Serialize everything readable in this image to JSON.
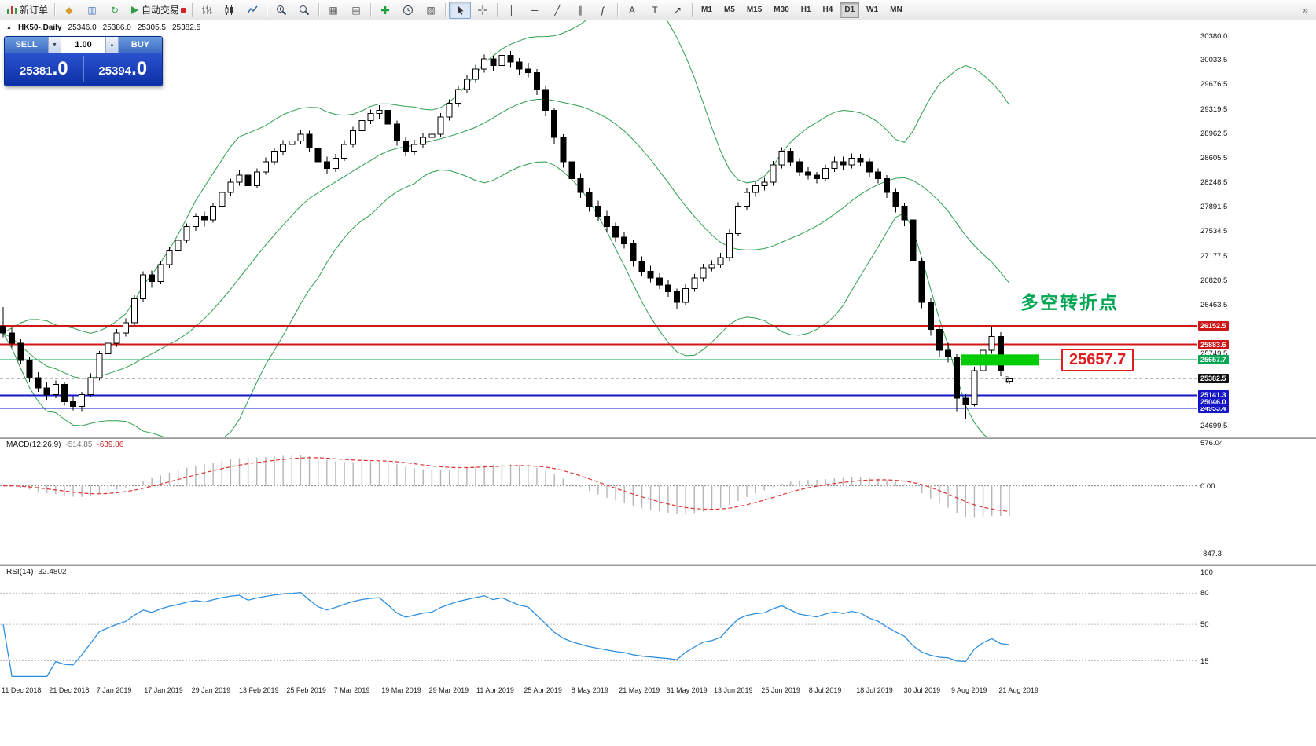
{
  "toolbar": {
    "items": [
      {
        "name": "new-order-button",
        "svg": "neworder",
        "label": "新订单"
      },
      {
        "type": "sep"
      },
      {
        "name": "new-chart-button",
        "glyph": "◆",
        "color": "#d99a2b"
      },
      {
        "name": "market-watch-button",
        "glyph": "▥",
        "color": "#4a78c0"
      },
      {
        "name": "navigator-button",
        "glyph": "↻",
        "color": "#2f9e44"
      },
      {
        "name": "autotrading-button",
        "svg": "play",
        "label": "自动交易",
        "badge": true
      },
      {
        "type": "sep"
      },
      {
        "name": "bar-chart-button",
        "svg": "bars"
      },
      {
        "name": "candlestick-chart-button",
        "svg": "candles"
      },
      {
        "name": "line-chart-button",
        "svg": "linechart"
      },
      {
        "type": "sep"
      },
      {
        "name": "zoom-in-button",
        "svg": "zoomin"
      },
      {
        "name": "zoom-out-button",
        "svg": "zoomout"
      },
      {
        "type": "sep"
      },
      {
        "name": "grid-button",
        "glyph": "▦",
        "color": "#555555"
      },
      {
        "name": "tile-windows-button",
        "glyph": "▤",
        "color": "#555555"
      },
      {
        "type": "sep"
      },
      {
        "name": "indicators-button",
        "svg": "indicator"
      },
      {
        "name": "periods-button",
        "svg": "clock"
      },
      {
        "name": "templates-button",
        "glyph": "▧",
        "color": "#555555"
      },
      {
        "type": "sep"
      },
      {
        "name": "cursor-button",
        "svg": "cursor",
        "pressed": true
      },
      {
        "name": "crosshair-button",
        "svg": "crosshair"
      },
      {
        "type": "sep"
      },
      {
        "name": "vertical-line-button",
        "glyph": "│",
        "color": "#333333"
      },
      {
        "name": "horizontal-line-button",
        "glyph": "─",
        "color": "#333333"
      },
      {
        "name": "trendline-button",
        "glyph": "╱",
        "color": "#333333"
      },
      {
        "name": "channel-button",
        "glyph": "∥",
        "color": "#333333"
      },
      {
        "name": "fibonacci-button",
        "glyph": "ƒ",
        "color": "#333333"
      },
      {
        "type": "sep"
      },
      {
        "name": "text-button",
        "glyph": "A",
        "color": "#333333"
      },
      {
        "name": "text-label-button",
        "glyph": "T",
        "color": "#333333"
      },
      {
        "name": "arrows-button",
        "glyph": "↗",
        "color": "#333333"
      },
      {
        "type": "sep"
      }
    ],
    "timeframes": [
      "M1",
      "M5",
      "M15",
      "M30",
      "H1",
      "H4",
      "D1",
      "W1",
      "MN"
    ],
    "active_timeframe": "D1",
    "overflow_glyph": "»"
  },
  "chart": {
    "header": {
      "marker": "▲",
      "symbol_period": "HK50-,Daily",
      "open": "25346.0",
      "high": "25386.0",
      "low": "25305.5",
      "close": "25382.5"
    },
    "one_click": {
      "sell_label": "SELL",
      "buy_label": "BUY",
      "volume": "1.00",
      "vol_down_glyph": "▼",
      "vol_up_glyph": "▲",
      "sell_price": "25381",
      "sell_pips": ".0",
      "buy_price": "25394",
      "buy_pips": ".0"
    },
    "annotations": {
      "turning_point": {
        "text": "多空转折点",
        "color": "#00a651"
      },
      "callout": {
        "text": "25657.7",
        "color": "#e02020"
      },
      "zone_rect": {
        "price": 25657.7,
        "x": 1222,
        "width": 100,
        "height": 14,
        "color": "#00cc00"
      },
      "marker_glyph": "⇩"
    }
  },
  "chart_data": {
    "type": "candlestick",
    "symbol": "HK50-",
    "period": "Daily",
    "ylim": [
      24539,
      30609
    ],
    "price_axis_labels": [
      "30380.0",
      "30033.5",
      "29676.5",
      "29319.5",
      "28962.5",
      "28605.5",
      "28248.5",
      "27891.5",
      "27534.5",
      "27177.5",
      "26820.5",
      "26463.5",
      "26106.5",
      "25749.5",
      "25392.5",
      "25035.5",
      "24699.5"
    ],
    "dates": [
      "11 Dec 2018",
      "21 Dec 2018",
      "7 Jan 2019",
      "17 Jan 2019",
      "29 Jan 2019",
      "13 Feb 2019",
      "25 Feb 2019",
      "7 Mar 2019",
      "19 Mar 2019",
      "29 Mar 2019",
      "11 Apr 2019",
      "25 Apr 2019",
      "8 May 2019",
      "21 May 2019",
      "31 May 2019",
      "13 Jun 2019",
      "25 Jun 2019",
      "8 Jul 2019",
      "18 Jul 2019",
      "30 Jul 2019",
      "9 Aug 2019",
      "21 Aug 2019"
    ],
    "hlines": [
      {
        "price": 26152.5,
        "label": "26152.5",
        "color": "#d01616"
      },
      {
        "price": 25883.6,
        "label": "25883.6",
        "color": "#d01616"
      },
      {
        "price": 25657.7,
        "label": "25657.7",
        "color": "#00a651"
      },
      {
        "price": 25141.3,
        "label": "25141.3",
        "color": "#1515c8"
      },
      {
        "price": 24953.4,
        "label": "24953.4",
        "color": "#1515c8"
      }
    ],
    "extra_tags": [
      {
        "price": 25046.0,
        "label": "25046.0",
        "color": "#1515c8"
      }
    ],
    "current_price": {
      "price": 25382.5,
      "label": "25382.5",
      "color": "#111111"
    },
    "bollinger": {
      "period": 20,
      "deviation": 2,
      "color": "#2e9e4f"
    },
    "macd": {
      "label": "MACD(12,26,9)",
      "main_value": "-514.85",
      "signal_value": "-639.86",
      "ylim": [
        -977,
        586
      ],
      "axis": [
        {
          "v": 576.04,
          "label": "576.04",
          "line": false
        },
        {
          "v": 0,
          "label": "0.00",
          "line": true
        },
        {
          "v": -847.3,
          "label": "-847.3",
          "line": false
        }
      ],
      "histogram_color": "#b5b5b5",
      "signal_color": "#e03030"
    },
    "rsi": {
      "label": "RSI(14)",
      "value": "32.4802",
      "ylim": [
        -5,
        106
      ],
      "levels": [
        {
          "v": 100,
          "label": "100",
          "line": false
        },
        {
          "v": 80,
          "label": "80",
          "line": true
        },
        {
          "v": 50,
          "label": "50",
          "line": true
        },
        {
          "v": 15,
          "label": "15",
          "line": true
        }
      ],
      "color": "#2f8fdf"
    },
    "candles": [
      [
        26150,
        26430,
        25990,
        26050
      ],
      [
        26050,
        26120,
        25840,
        25900
      ],
      [
        25900,
        25960,
        25590,
        25650
      ],
      [
        25650,
        25700,
        25340,
        25400
      ],
      [
        25400,
        25480,
        25190,
        25250
      ],
      [
        25250,
        25330,
        25080,
        25150
      ],
      [
        25150,
        25360,
        25100,
        25300
      ],
      [
        25300,
        25340,
        24990,
        25050
      ],
      [
        25050,
        25130,
        24920,
        24980
      ],
      [
        24980,
        25190,
        24900,
        25150
      ],
      [
        25150,
        25460,
        25110,
        25400
      ],
      [
        25400,
        25790,
        25360,
        25750
      ],
      [
        25750,
        25960,
        25680,
        25900
      ],
      [
        25900,
        26110,
        25850,
        26050
      ],
      [
        26050,
        26260,
        26000,
        26200
      ],
      [
        26200,
        26600,
        26160,
        26550
      ],
      [
        26550,
        26950,
        26500,
        26900
      ],
      [
        26900,
        26960,
        26710,
        26800
      ],
      [
        26800,
        27100,
        26760,
        27050
      ],
      [
        27050,
        27300,
        27000,
        27250
      ],
      [
        27250,
        27460,
        27200,
        27400
      ],
      [
        27400,
        27650,
        27360,
        27600
      ],
      [
        27600,
        27800,
        27540,
        27750
      ],
      [
        27750,
        27820,
        27600,
        27700
      ],
      [
        27700,
        27950,
        27660,
        27900
      ],
      [
        27900,
        28150,
        27860,
        28100
      ],
      [
        28100,
        28300,
        28050,
        28250
      ],
      [
        28250,
        28420,
        28200,
        28350
      ],
      [
        28350,
        28400,
        28120,
        28200
      ],
      [
        28200,
        28450,
        28160,
        28400
      ],
      [
        28400,
        28610,
        28360,
        28550
      ],
      [
        28550,
        28750,
        28500,
        28700
      ],
      [
        28700,
        28860,
        28650,
        28800
      ],
      [
        28800,
        28920,
        28740,
        28850
      ],
      [
        28850,
        29010,
        28800,
        28950
      ],
      [
        28950,
        29000,
        28690,
        28750
      ],
      [
        28750,
        28800,
        28480,
        28550
      ],
      [
        28550,
        28620,
        28370,
        28450
      ],
      [
        28450,
        28660,
        28400,
        28600
      ],
      [
        28600,
        28860,
        28560,
        28800
      ],
      [
        28800,
        29060,
        28760,
        29000
      ],
      [
        29000,
        29210,
        28950,
        29150
      ],
      [
        29150,
        29310,
        29100,
        29250
      ],
      [
        29250,
        29370,
        29180,
        29300
      ],
      [
        29300,
        29340,
        29020,
        29100
      ],
      [
        29100,
        29150,
        28780,
        28850
      ],
      [
        28850,
        28910,
        28630,
        28700
      ],
      [
        28700,
        28870,
        28650,
        28800
      ],
      [
        28800,
        28960,
        28750,
        28900
      ],
      [
        28900,
        29010,
        28840,
        28950
      ],
      [
        28950,
        29260,
        28900,
        29200
      ],
      [
        29200,
        29460,
        29150,
        29400
      ],
      [
        29400,
        29660,
        29350,
        29600
      ],
      [
        29600,
        29810,
        29550,
        29750
      ],
      [
        29750,
        29960,
        29700,
        29900
      ],
      [
        29900,
        30110,
        29850,
        30050
      ],
      [
        30050,
        30100,
        29870,
        29950
      ],
      [
        29950,
        30280,
        29900,
        30100
      ],
      [
        30100,
        30160,
        29930,
        30000
      ],
      [
        30000,
        30060,
        29820,
        29900
      ],
      [
        29900,
        29990,
        29780,
        29850
      ],
      [
        29850,
        29900,
        29520,
        29600
      ],
      [
        29600,
        29650,
        29210,
        29300
      ],
      [
        29300,
        29340,
        28810,
        28900
      ],
      [
        28900,
        28950,
        28460,
        28550
      ],
      [
        28550,
        28600,
        28210,
        28300
      ],
      [
        28300,
        28380,
        28020,
        28100
      ],
      [
        28100,
        28160,
        27820,
        27900
      ],
      [
        27900,
        27980,
        27680,
        27750
      ],
      [
        27750,
        27830,
        27530,
        27600
      ],
      [
        27600,
        27660,
        27380,
        27450
      ],
      [
        27450,
        27520,
        27280,
        27350
      ],
      [
        27350,
        27400,
        27020,
        27100
      ],
      [
        27100,
        27170,
        26880,
        26950
      ],
      [
        26950,
        27030,
        26790,
        26850
      ],
      [
        26850,
        26920,
        26690,
        26750
      ],
      [
        26750,
        26820,
        26580,
        26650
      ],
      [
        26650,
        26700,
        26400,
        26500
      ],
      [
        26500,
        26760,
        26460,
        26700
      ],
      [
        26700,
        26910,
        26650,
        26850
      ],
      [
        26850,
        27060,
        26800,
        27000
      ],
      [
        27000,
        27110,
        26950,
        27050
      ],
      [
        27050,
        27220,
        27000,
        27150
      ],
      [
        27150,
        27560,
        27100,
        27500
      ],
      [
        27500,
        27960,
        27460,
        27900
      ],
      [
        27900,
        28160,
        27850,
        28100
      ],
      [
        28100,
        28260,
        28040,
        28200
      ],
      [
        28200,
        28310,
        28130,
        28250
      ],
      [
        28250,
        28560,
        28200,
        28500
      ],
      [
        28500,
        28760,
        28450,
        28700
      ],
      [
        28700,
        28750,
        28490,
        28550
      ],
      [
        28550,
        28600,
        28340,
        28400
      ],
      [
        28400,
        28470,
        28290,
        28350
      ],
      [
        28350,
        28400,
        28230,
        28300
      ],
      [
        28300,
        28510,
        28260,
        28450
      ],
      [
        28450,
        28620,
        28400,
        28550
      ],
      [
        28550,
        28620,
        28430,
        28500
      ],
      [
        28500,
        28670,
        28450,
        28600
      ],
      [
        28600,
        28660,
        28480,
        28550
      ],
      [
        28550,
        28600,
        28330,
        28400
      ],
      [
        28400,
        28450,
        28230,
        28300
      ],
      [
        28300,
        28350,
        28020,
        28100
      ],
      [
        28100,
        28150,
        27810,
        27900
      ],
      [
        27900,
        27950,
        27610,
        27700
      ],
      [
        27700,
        27740,
        27010,
        27100
      ],
      [
        27100,
        27150,
        26410,
        26500
      ],
      [
        26500,
        26560,
        26010,
        26100
      ],
      [
        26100,
        26160,
        25710,
        25800
      ],
      [
        25800,
        25910,
        25620,
        25700
      ],
      [
        25700,
        25740,
        24900,
        25100
      ],
      [
        25100,
        25160,
        24800,
        25000
      ],
      [
        25000,
        25560,
        24980,
        25500
      ],
      [
        25500,
        25860,
        25460,
        25800
      ],
      [
        25800,
        26150,
        25750,
        26000
      ],
      [
        26000,
        26060,
        25420,
        25500
      ],
      [
        25346,
        25386,
        25305.5,
        25382.5
      ]
    ]
  }
}
